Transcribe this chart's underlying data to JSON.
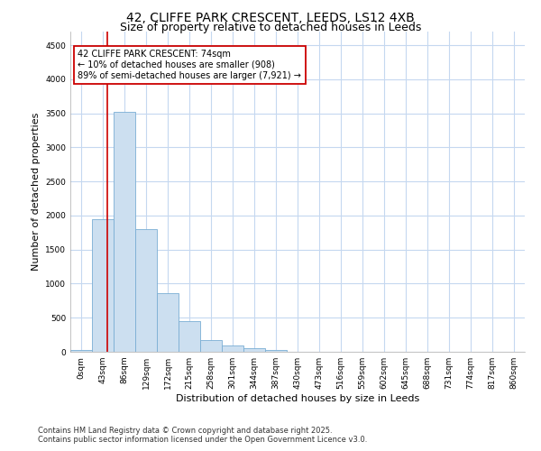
{
  "title1": "42, CLIFFE PARK CRESCENT, LEEDS, LS12 4XB",
  "title2": "Size of property relative to detached houses in Leeds",
  "xlabel": "Distribution of detached houses by size in Leeds",
  "ylabel": "Number of detached properties",
  "categories": [
    "0sqm",
    "43sqm",
    "86sqm",
    "129sqm",
    "172sqm",
    "215sqm",
    "258sqm",
    "301sqm",
    "344sqm",
    "387sqm",
    "430sqm",
    "473sqm",
    "516sqm",
    "559sqm",
    "602sqm",
    "645sqm",
    "688sqm",
    "731sqm",
    "774sqm",
    "817sqm",
    "860sqm"
  ],
  "bar_heights": [
    30,
    1940,
    3520,
    1800,
    860,
    450,
    175,
    95,
    55,
    30,
    0,
    0,
    0,
    0,
    0,
    0,
    0,
    0,
    0,
    0,
    0
  ],
  "bar_color": "#ccdff0",
  "bar_edge_color": "#7aaed4",
  "annotation_text_line1": "42 CLIFFE PARK CRESCENT: 74sqm",
  "annotation_text_line2": "← 10% of detached houses are smaller (908)",
  "annotation_text_line3": "89% of semi-detached houses are larger (7,921) →",
  "annotation_box_color": "#ffffff",
  "annotation_box_edge_color": "#cc0000",
  "red_line_x": 1.72,
  "ylim": [
    0,
    4700
  ],
  "yticks": [
    0,
    500,
    1000,
    1500,
    2000,
    2500,
    3000,
    3500,
    4000,
    4500
  ],
  "footnote": "Contains HM Land Registry data © Crown copyright and database right 2025.\nContains public sector information licensed under the Open Government Licence v3.0.",
  "bg_color": "#ffffff",
  "plot_bg_color": "#ffffff",
  "grid_color": "#c5d8f0",
  "title1_fontsize": 10,
  "title2_fontsize": 9,
  "annotation_fontsize": 7,
  "footnote_fontsize": 6,
  "tick_fontsize": 6.5,
  "label_fontsize": 8
}
